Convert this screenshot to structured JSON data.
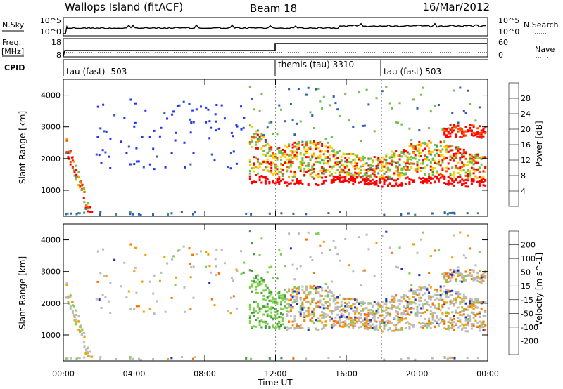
{
  "header": {
    "title": "Wallops Island (fitACF)",
    "beam": "Beam 18",
    "date": "16/Mar/2012"
  },
  "nsky_panel": {
    "left_label": "N.Sky",
    "right_label": "N.Search",
    "left_ticks": [
      "10^5",
      "10^0"
    ],
    "right_ticks": [
      "10^5",
      "10^0"
    ]
  },
  "freq_panel": {
    "left_label_1": "Freq.",
    "left_label_2": "[MHz]",
    "right_label": "Nave",
    "left_ticks": [
      "18",
      "8"
    ],
    "right_ticks": [
      "60",
      "0"
    ]
  },
  "cpid": {
    "label": "CPID",
    "segments": [
      {
        "text": "tau (fast) -503",
        "start_hour": 0
      },
      {
        "text": "themis (tau) 3310",
        "start_hour": 12
      },
      {
        "text": "tau (fast) 503",
        "start_hour": 18
      }
    ]
  },
  "chart_data": [
    {
      "type": "heatmap",
      "name": "power",
      "xlabel": "",
      "ylabel": "Slant Range [km]",
      "xlim": [
        0,
        24
      ],
      "ylim": [
        180,
        4500
      ],
      "yticks": [
        1000,
        2000,
        3000,
        4000
      ],
      "colorbar": {
        "label": "Power [dB]",
        "ticks": [
          4,
          8,
          12,
          16,
          20,
          24,
          28
        ],
        "colors": [
          "#2233ff",
          "#2f5fb0",
          "#3c8f7a",
          "#6fbf4a",
          "#ffd300",
          "#ff9a00",
          "#ff4d00",
          "#ff0000"
        ]
      }
    },
    {
      "type": "heatmap",
      "name": "velocity",
      "xlabel": "Time UT",
      "ylabel": "Slant Range [km]",
      "xlim": [
        0,
        24
      ],
      "ylim": [
        180,
        4500
      ],
      "yticks": [
        1000,
        2000,
        3000,
        4000
      ],
      "xticks": [
        "00:00",
        "04:00",
        "08:00",
        "12:00",
        "16:00",
        "20:00",
        "00:00"
      ],
      "colorbar": {
        "label": "Velocity [m s^-1]",
        "ticks": [
          200,
          100,
          50,
          15,
          -15,
          -50,
          -100,
          -200
        ],
        "colors": [
          "#1f2fbf",
          "#2f60c0",
          "#3f9a40",
          "#7fd04a",
          "#bbbbbb",
          "#f0a000",
          "#ff7000",
          "#ff3000",
          "#ff0000"
        ]
      }
    }
  ]
}
